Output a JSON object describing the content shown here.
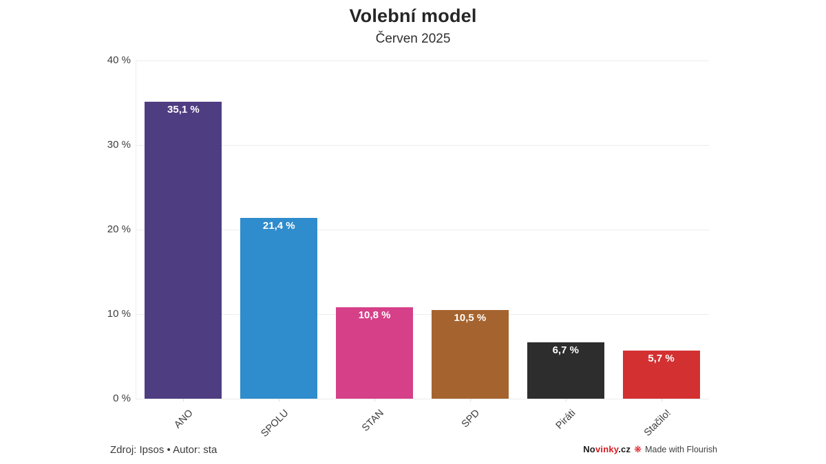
{
  "header": {
    "title": "Volební model",
    "subtitle": "Červen 2025"
  },
  "chart_data": {
    "type": "bar",
    "title": "Volební model",
    "subtitle": "Červen 2025",
    "categories": [
      "ANO",
      "SPOLU",
      "STAN",
      "SPD",
      "Piráti",
      "Stačilo!"
    ],
    "values": [
      35.1,
      21.4,
      10.8,
      10.5,
      6.7,
      5.7
    ],
    "value_labels": [
      "35,1 %",
      "21,4 %",
      "10,8 %",
      "10,5 %",
      "6,7 %",
      "5,7 %"
    ],
    "bar_colors": [
      "#4f3d82",
      "#2f8ccd",
      "#d64089",
      "#a5642f",
      "#2d2d2d",
      "#d33031"
    ],
    "xlabel": "",
    "ylabel": "",
    "ylim": [
      0,
      40
    ],
    "yticks": [
      0,
      10,
      20,
      30,
      40
    ],
    "ytick_labels": [
      "0 %",
      "10 %",
      "20 %",
      "30 %",
      "40 %"
    ],
    "grid": "horizontal",
    "legend": "none",
    "x_label_rotation_deg": -45
  },
  "footer": {
    "source": "Zdroj: Ipsos • Autor: sta",
    "brand": {
      "part1": "No",
      "part2": "vinky",
      "part3": ".cz",
      "part1_color": "#1a1a1a",
      "part2_color": "#d7191f",
      "part3_color": "#1a1a1a"
    },
    "flourish_icon": "flourish-asterisk",
    "made_with": "Made with Flourish"
  },
  "colors": {
    "background": "#ffffff",
    "gridline": "#ececec",
    "axis_text": "#3d3d3d",
    "title_text": "#262626",
    "bar_value_text": "#ffffff"
  }
}
